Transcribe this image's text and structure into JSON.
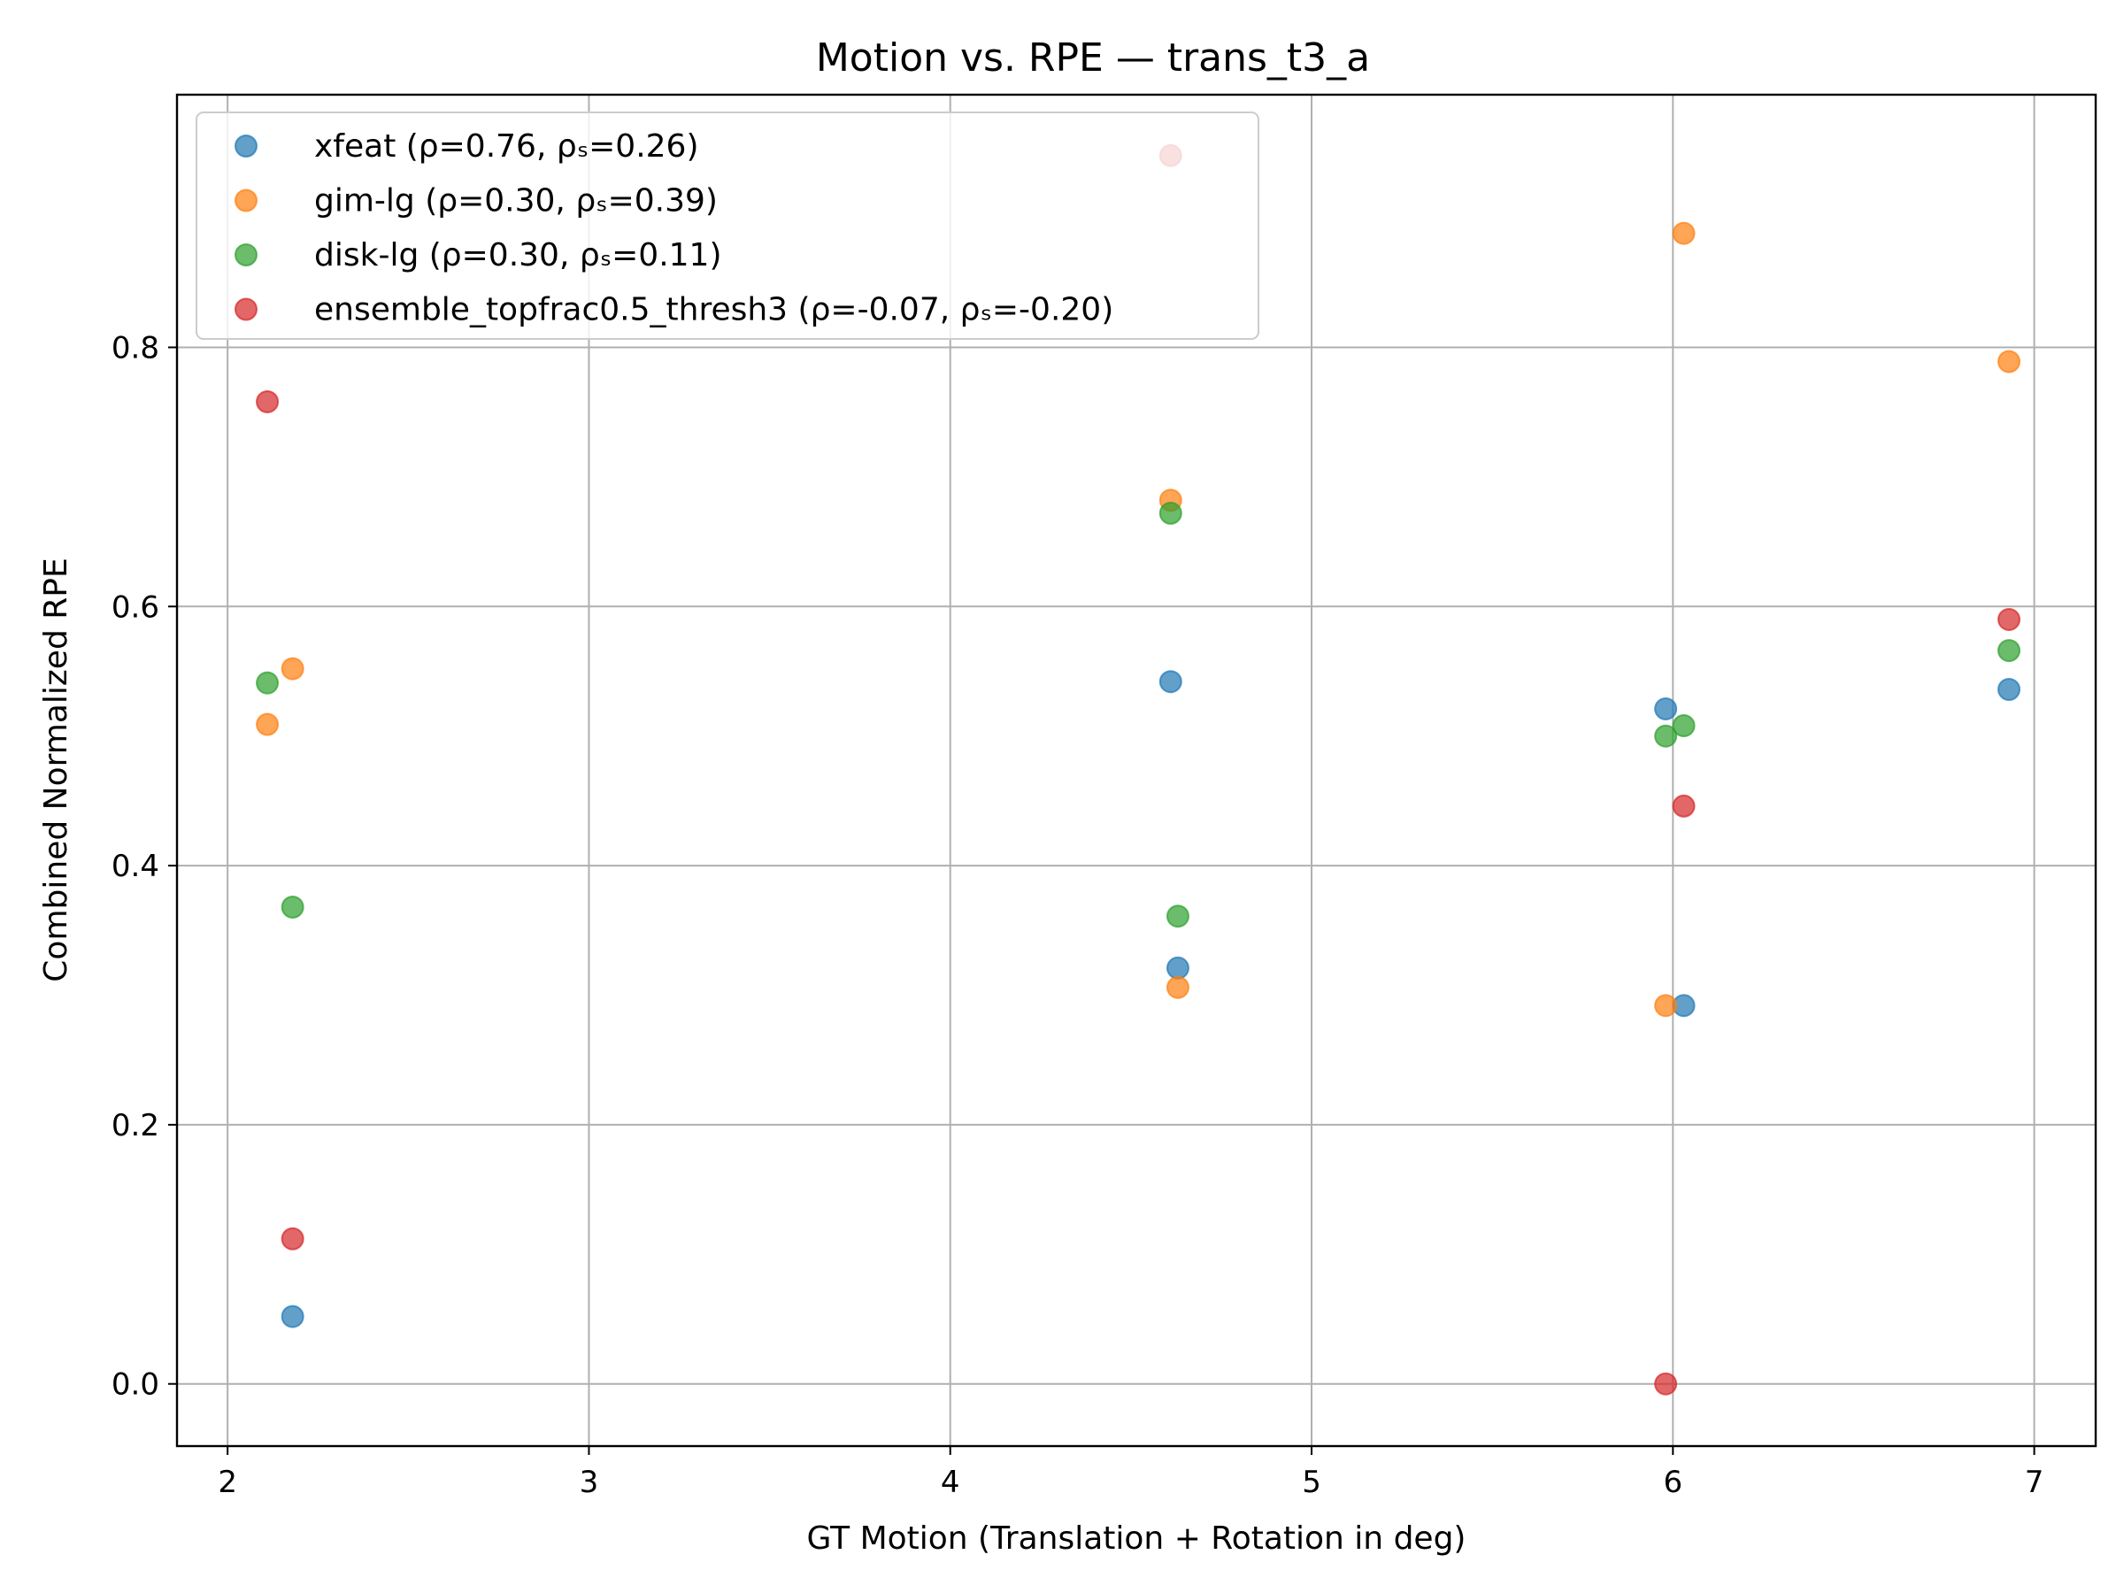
{
  "chart_data": {
    "type": "scatter",
    "title": "Motion vs. RPE — trans_t3_a",
    "xlabel": "GT Motion (Translation + Rotation in deg)",
    "ylabel": "Combined Normalized RPE",
    "xlim": [
      1.86,
      7.17
    ],
    "ylim": [
      -0.048,
      0.995
    ],
    "xticks": [
      2,
      3,
      4,
      5,
      6,
      7
    ],
    "xtick_labels": [
      "2",
      "3",
      "4",
      "5",
      "6",
      "7"
    ],
    "yticks": [
      0.0,
      0.2,
      0.4,
      0.6,
      0.8
    ],
    "ytick_labels": [
      "0.0",
      "0.2",
      "0.4",
      "0.6",
      "0.8"
    ],
    "grid": true,
    "legend_position": "top-left",
    "marker_opacity": 0.7,
    "series": [
      {
        "name": "xfeat (ρ=0.76, ρₛ=0.26)",
        "color": "#1f77b4",
        "points": [
          {
            "x": 2.18,
            "y": 0.052
          },
          {
            "x": 4.61,
            "y": 0.542
          },
          {
            "x": 4.63,
            "y": 0.321
          },
          {
            "x": 5.98,
            "y": 0.521
          },
          {
            "x": 6.03,
            "y": 0.292
          },
          {
            "x": 6.93,
            "y": 0.536
          }
        ]
      },
      {
        "name": "gim-lg (ρ=0.30, ρₛ=0.39)",
        "color": "#ff7f0e",
        "points": [
          {
            "x": 2.11,
            "y": 0.509
          },
          {
            "x": 2.18,
            "y": 0.552
          },
          {
            "x": 4.61,
            "y": 0.682
          },
          {
            "x": 4.63,
            "y": 0.306
          },
          {
            "x": 5.98,
            "y": 0.292
          },
          {
            "x": 6.03,
            "y": 0.888
          },
          {
            "x": 6.93,
            "y": 0.789
          }
        ]
      },
      {
        "name": "disk-lg (ρ=0.30, ρₛ=0.11)",
        "color": "#2ca02c",
        "points": [
          {
            "x": 2.11,
            "y": 0.541
          },
          {
            "x": 2.18,
            "y": 0.368
          },
          {
            "x": 4.61,
            "y": 0.672
          },
          {
            "x": 4.63,
            "y": 0.361
          },
          {
            "x": 5.98,
            "y": 0.5
          },
          {
            "x": 6.03,
            "y": 0.508
          },
          {
            "x": 6.93,
            "y": 0.566
          }
        ]
      },
      {
        "name": "ensemble_topfrac0.5_thresh3 (ρ=-0.07, ρₛ=-0.20)",
        "color": "#d62728",
        "points": [
          {
            "x": 2.11,
            "y": 0.758
          },
          {
            "x": 2.18,
            "y": 0.112
          },
          {
            "x": 4.61,
            "y": 0.948
          },
          {
            "x": 5.98,
            "y": 0.0
          },
          {
            "x": 6.03,
            "y": 0.446
          },
          {
            "x": 6.93,
            "y": 0.59
          }
        ]
      }
    ]
  }
}
